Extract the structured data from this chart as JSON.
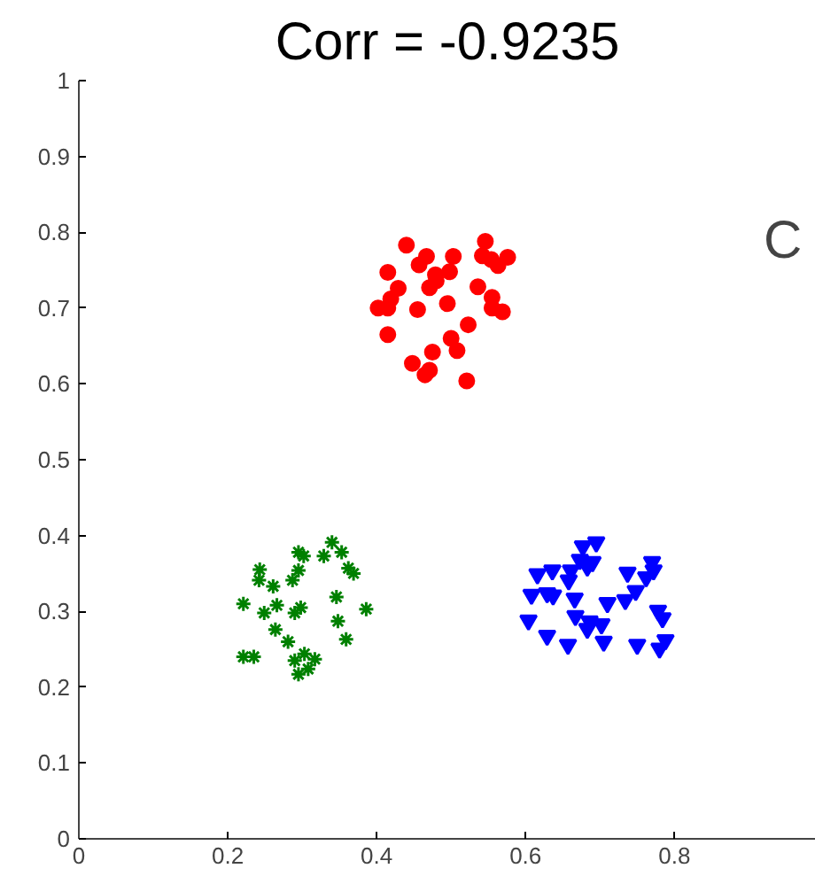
{
  "chart_data": {
    "type": "scatter",
    "title": "Corr = -0.9235",
    "annotations": [
      "C"
    ],
    "xlim": [
      0,
      0.99
    ],
    "ylim": [
      0,
      1
    ],
    "xticks": [
      0,
      0.2,
      0.4,
      0.6,
      0.8
    ],
    "yticks": [
      0,
      0.1,
      0.2,
      0.3,
      0.4,
      0.5,
      0.6,
      0.7,
      0.8,
      0.9,
      1
    ],
    "grid": false,
    "series": [
      {
        "color": "#ff0000",
        "marker": "circle",
        "x": [
          0.44,
          0.467,
          0.457,
          0.503,
          0.546,
          0.542,
          0.554,
          0.563,
          0.576,
          0.415,
          0.479,
          0.498,
          0.429,
          0.471,
          0.48,
          0.536,
          0.419,
          0.402,
          0.415,
          0.455,
          0.495,
          0.555,
          0.555,
          0.569,
          0.415,
          0.523,
          0.5,
          0.508,
          0.475,
          0.448,
          0.471,
          0.465,
          0.521
        ],
        "values": [
          0.783,
          0.768,
          0.757,
          0.768,
          0.788,
          0.769,
          0.764,
          0.756,
          0.767,
          0.747,
          0.744,
          0.748,
          0.726,
          0.727,
          0.736,
          0.728,
          0.712,
          0.7,
          0.7,
          0.698,
          0.706,
          0.714,
          0.7,
          0.695,
          0.665,
          0.678,
          0.66,
          0.644,
          0.642,
          0.627,
          0.618,
          0.612,
          0.604
        ]
      },
      {
        "color": "#008000",
        "marker": "cross",
        "x": [
          0.295,
          0.302,
          0.34,
          0.329,
          0.353,
          0.362,
          0.369,
          0.243,
          0.242,
          0.295,
          0.287,
          0.261,
          0.346,
          0.221,
          0.266,
          0.249,
          0.298,
          0.29,
          0.386,
          0.348,
          0.264,
          0.281,
          0.359,
          0.221,
          0.235,
          0.303,
          0.29,
          0.317,
          0.308,
          0.295
        ],
        "values": [
          0.378,
          0.373,
          0.391,
          0.373,
          0.378,
          0.357,
          0.35,
          0.355,
          0.341,
          0.354,
          0.341,
          0.333,
          0.319,
          0.31,
          0.308,
          0.298,
          0.305,
          0.298,
          0.303,
          0.287,
          0.276,
          0.26,
          0.263,
          0.24,
          0.24,
          0.244,
          0.235,
          0.237,
          0.224,
          0.217
        ]
      },
      {
        "color": "#0000ff",
        "marker": "triangle",
        "x": [
          0.677,
          0.695,
          0.673,
          0.69,
          0.683,
          0.616,
          0.636,
          0.661,
          0.658,
          0.77,
          0.772,
          0.737,
          0.762,
          0.608,
          0.629,
          0.637,
          0.666,
          0.748,
          0.734,
          0.71,
          0.604,
          0.667,
          0.686,
          0.702,
          0.683,
          0.778,
          0.784,
          0.629,
          0.657,
          0.705,
          0.75,
          0.788,
          0.78
        ],
        "values": [
          0.386,
          0.391,
          0.368,
          0.365,
          0.359,
          0.349,
          0.354,
          0.354,
          0.341,
          0.365,
          0.354,
          0.351,
          0.345,
          0.322,
          0.324,
          0.321,
          0.317,
          0.327,
          0.315,
          0.311,
          0.288,
          0.294,
          0.287,
          0.283,
          0.277,
          0.301,
          0.291,
          0.268,
          0.256,
          0.26,
          0.256,
          0.262,
          0.251
        ]
      }
    ]
  }
}
